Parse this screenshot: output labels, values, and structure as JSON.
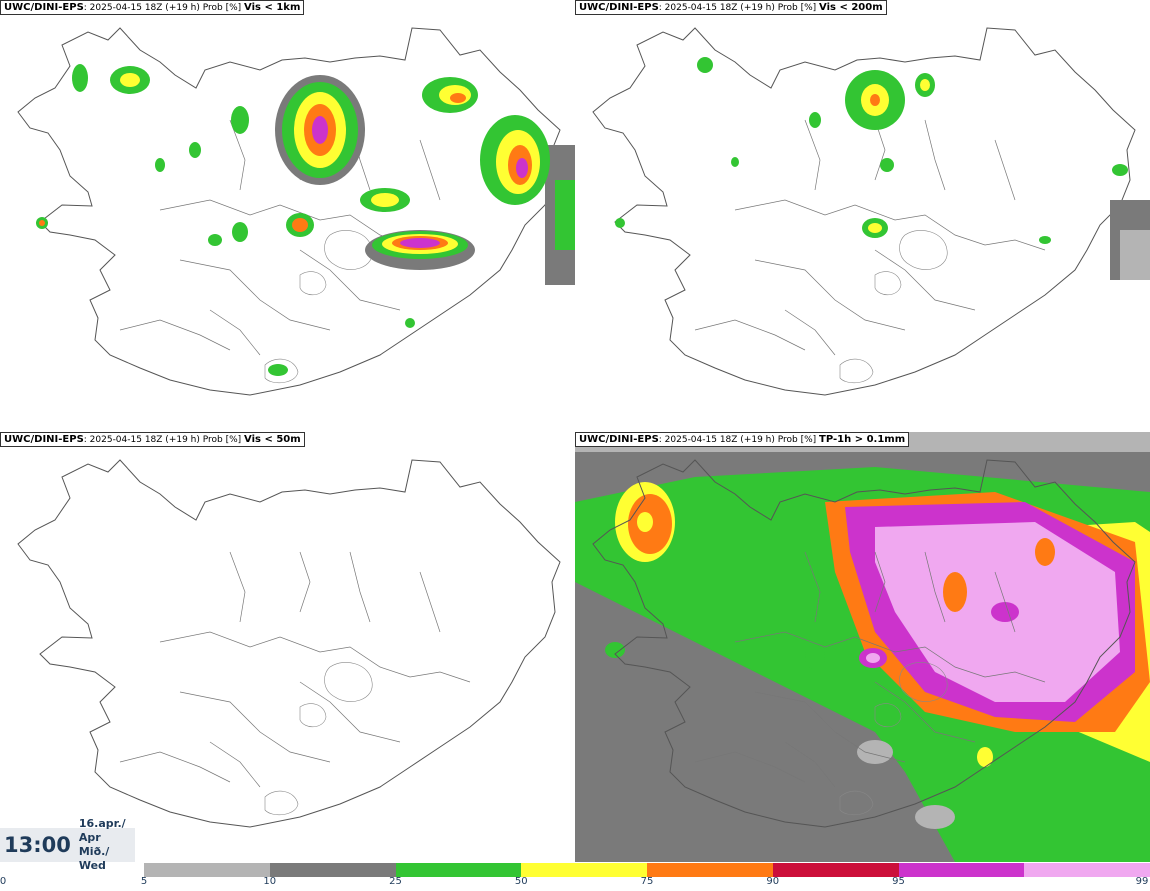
{
  "panels": [
    {
      "model": "UWC/DINI-EPS",
      "run": ": 2025-04-15 18Z (+19 h) Prob [%]",
      "variable": "Vis < 1km"
    },
    {
      "model": "UWC/DINI-EPS",
      "run": ": 2025-04-15 18Z (+19 h) Prob [%]",
      "variable": "Vis < 200m"
    },
    {
      "model": "UWC/DINI-EPS",
      "run": ": 2025-04-15 18Z (+19 h) Prob [%]",
      "variable": "Vis < 50m"
    },
    {
      "model": "UWC/DINI-EPS",
      "run": ": 2025-04-15 18Z (+19 h) Prob [%]",
      "variable": "TP-1h > 0.1mm"
    }
  ],
  "time": {
    "clock": "13:00",
    "date_line1": "16.apr./ Apr",
    "date_line2": "Mið./ Wed"
  },
  "legend": {
    "ticks": [
      "0",
      "5",
      "10",
      "25",
      "50",
      "75",
      "90",
      "95",
      "99"
    ],
    "colors": [
      "#b4b4b4",
      "#7a7a7a",
      "#33c533",
      "#ffff33",
      "#ff7a14",
      "#cc0f3a",
      "#cc33cc",
      "#f0a8f0"
    ]
  }
}
